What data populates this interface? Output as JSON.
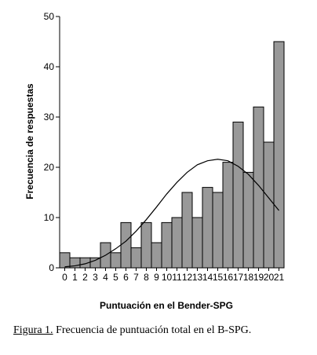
{
  "chart_data": {
    "type": "bar",
    "xlabel": "Puntuación en el Bender-SPG",
    "ylabel": "Frecuencia de respuestas",
    "categories": [
      "0",
      "1",
      "2",
      "3",
      "4",
      "5",
      "6",
      "7",
      "8",
      "9",
      "10",
      "11",
      "12",
      "13",
      "14",
      "15",
      "16",
      "17",
      "18",
      "19",
      "20",
      "21"
    ],
    "values": [
      3,
      2,
      2,
      2,
      5,
      3,
      9,
      4,
      9,
      5,
      9,
      10,
      15,
      10,
      16,
      15,
      21,
      29,
      19,
      32,
      25,
      45
    ],
    "yticks": [
      0,
      10,
      20,
      30,
      40,
      50
    ],
    "ylim": [
      0,
      50
    ],
    "bar_color": "#999999",
    "curve": {
      "type": "normal",
      "x": [
        0,
        1,
        2,
        3,
        4,
        5,
        6,
        7,
        8,
        9,
        10,
        11,
        12,
        13,
        14,
        15,
        16,
        17,
        18,
        19,
        20,
        21
      ],
      "y": [
        0.2,
        0.4,
        0.8,
        1.5,
        2.5,
        3.8,
        5.3,
        7.3,
        9.6,
        12.1,
        14.7,
        17.0,
        19.0,
        20.5,
        21.3,
        21.6,
        21.3,
        20.2,
        18.6,
        16.4,
        13.9,
        11.4
      ]
    }
  },
  "caption": {
    "label": "Figura 1.",
    "text": " Frecuencia de puntuación total en el B-SPG."
  }
}
